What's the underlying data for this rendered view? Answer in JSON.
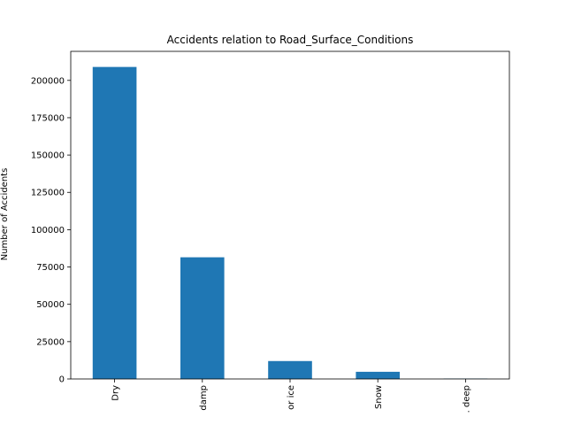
{
  "chart_data": {
    "type": "bar",
    "title": "Accidents relation to Road_Surface_Conditions",
    "xlabel": "",
    "ylabel": "Number of Accidents",
    "categories": [
      "Dry",
      "damp",
      "or ice",
      "Snow",
      ". deep"
    ],
    "values": [
      209000,
      81500,
      12000,
      4800,
      250
    ],
    "ylim": [
      0,
      219450
    ],
    "yticks": [
      0,
      25000,
      50000,
      75000,
      100000,
      125000,
      150000,
      175000,
      200000
    ],
    "ytick_labels": [
      "0",
      "25000",
      "50000",
      "75000",
      "100000",
      "125000",
      "150000",
      "175000",
      "200000"
    ],
    "bar_color": "#1f77b4",
    "grid": false,
    "legend": "none"
  }
}
